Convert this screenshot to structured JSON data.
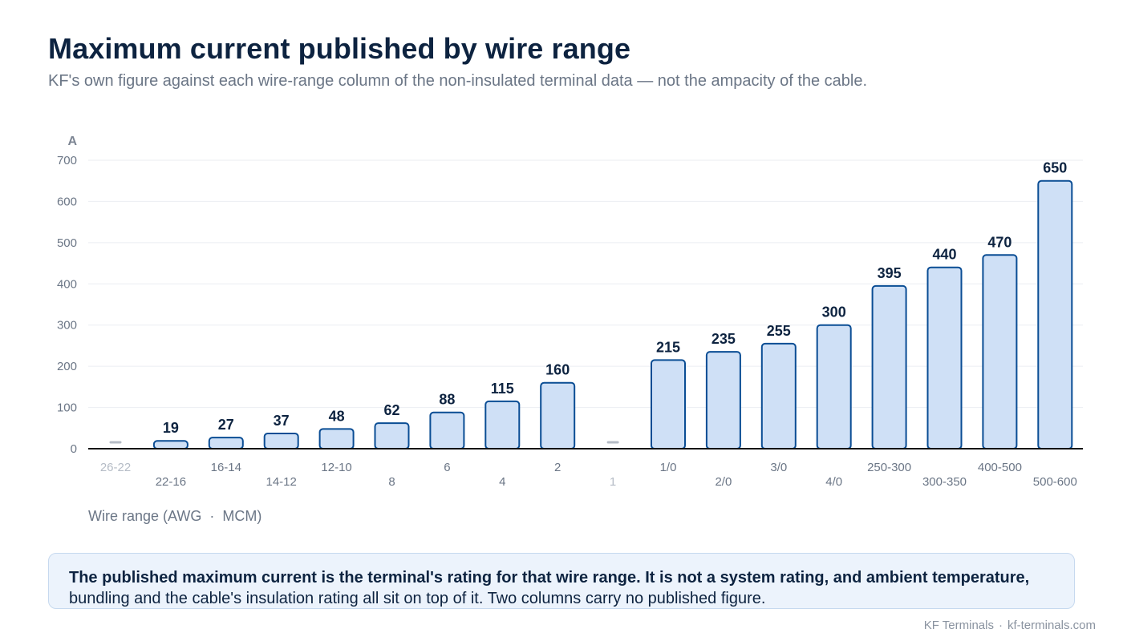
{
  "header": {
    "title": "Maximum current published by wire range",
    "subtitle": "KF's own figure against each wire-range column of the non-insulated terminal data — not the ampacity of the cable."
  },
  "chart_data": {
    "type": "bar",
    "y_unit_label": "A",
    "xlabel": "Wire range (AWG  ·  MCM)",
    "ylim": [
      0,
      700
    ],
    "y_ticks": [
      0,
      100,
      200,
      300,
      400,
      500,
      600,
      700
    ],
    "grid": true,
    "categories": [
      "26-22",
      "22-16",
      "16-14",
      "14-12",
      "12-10",
      "8",
      "6",
      "4",
      "2",
      "1",
      "1/0",
      "2/0",
      "3/0",
      "4/0",
      "250-300",
      "300-350",
      "400-500",
      "500-600"
    ],
    "values": [
      null,
      19,
      27,
      37,
      48,
      62,
      88,
      115,
      160,
      null,
      215,
      235,
      255,
      300,
      395,
      440,
      470,
      650
    ],
    "missing_marker": "—",
    "colors": {
      "bar_fill": "#cfe0f6",
      "bar_stroke": "#0a4d94",
      "label": "#0d2340",
      "muted": "#b5bcc6",
      "axis": "#111111",
      "grid": "#ebeef2",
      "tick": "#6b7686"
    }
  },
  "note": {
    "bold_text": "The published maximum current is the terminal's rating for that wire range. It is not a system rating, and ambient temperature,",
    "regular_text": "bundling and the cable's insulation rating all sit on top of it. Two columns carry no published figure."
  },
  "footer": {
    "brand": "KF Terminals",
    "separator": "·",
    "url": "kf-terminals.com"
  }
}
